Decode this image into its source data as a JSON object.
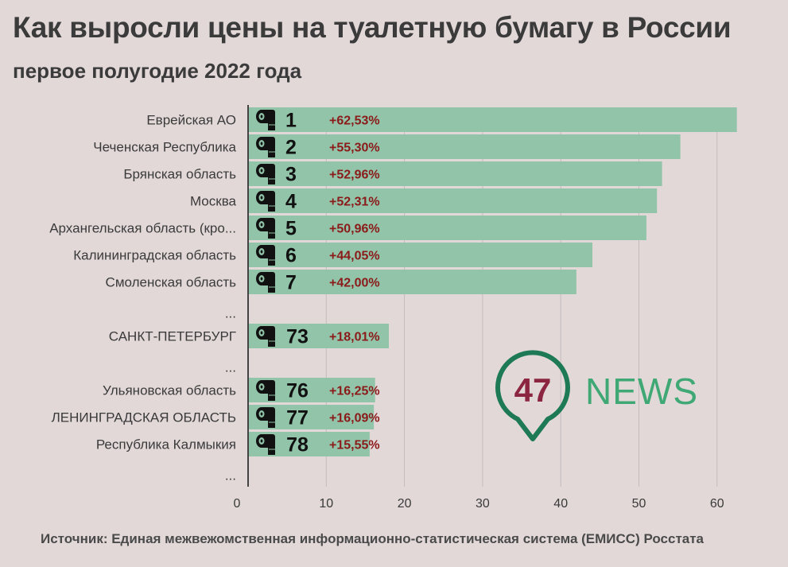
{
  "title": "Как выросли цены на туалетную бумагу в России",
  "subtitle": "первое полугодие 2022 года",
  "source": "Источник: Единая межвежомственная информационно-статистическая система (ЕМИСС) Росстата",
  "logo": {
    "number": "47",
    "word": "NEWS"
  },
  "colors": {
    "bar": "#91c4a8",
    "pct": "#8b1a1a",
    "logo_pin": "#1e7a55",
    "logo_number": "#8b2540",
    "logo_word": "#3fa874"
  },
  "chart_data": {
    "type": "bar",
    "orientation": "horizontal",
    "categories": [
      "Еврейская АО",
      "Чеченская Республика",
      "Брянская область",
      "Москва",
      "Архангельская область (кро...",
      "Калининградская область",
      "Смоленская область",
      "...",
      "САНКТ-ПЕТЕРБУРГ",
      "...",
      "Ульяновская область",
      "ЛЕНИНГРАДСКАЯ ОБЛАСТЬ",
      "Республика Калмыкия",
      "..."
    ],
    "values": [
      62.53,
      55.3,
      52.96,
      52.31,
      50.96,
      44.05,
      42.0,
      null,
      18.01,
      null,
      16.25,
      16.09,
      15.55,
      null
    ],
    "ranks": [
      "1",
      "2",
      "3",
      "4",
      "5",
      "6",
      "7",
      "",
      "73",
      "",
      "76",
      "77",
      "78",
      ""
    ],
    "value_labels": [
      "+62,53%",
      "+55,30%",
      "+52,96%",
      "+52,31%",
      "+50,96%",
      "+44,05%",
      "+42,00%",
      "",
      "+18,01%",
      "",
      "+16,25%",
      "+16,09%",
      "+15,55%",
      ""
    ],
    "xlim": [
      0,
      65
    ],
    "xticks": [
      0,
      10,
      20,
      30,
      40,
      50,
      60
    ],
    "xtick_labels": [
      "0",
      "10",
      "20",
      "30",
      "40",
      "50",
      "60"
    ],
    "grid": true,
    "icon": "toilet-paper-icon"
  }
}
